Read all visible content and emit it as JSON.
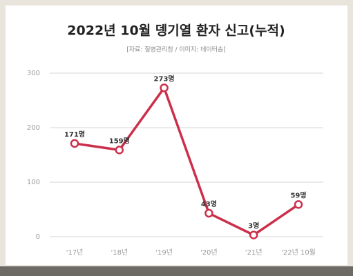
{
  "chart_data": {
    "type": "line",
    "title": "2022년 10월 뎅기열 환자 신고(누적)",
    "subtitle": "[자료: 질병관리청 / 이미지: 데이터솜]",
    "categories": [
      "'17년",
      "'18년",
      "'19년",
      "'20년",
      "'21년",
      "'22년 10월"
    ],
    "series": [
      {
        "name": "뎅기열 환자",
        "color": "#cc2f4a",
        "values": [
          171,
          159,
          273,
          43,
          3,
          59
        ],
        "value_labels": [
          "171명",
          "159명",
          "273명",
          "43명",
          "3명",
          "59명"
        ]
      }
    ],
    "ylim": [
      0,
      300
    ],
    "yticks": [
      0,
      100,
      200,
      300
    ],
    "grid": true
  }
}
